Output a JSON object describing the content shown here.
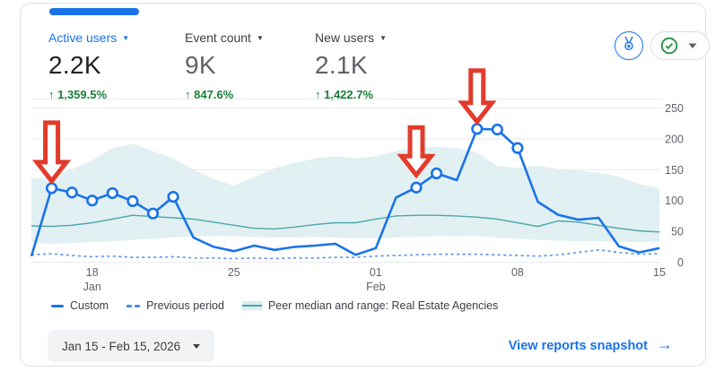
{
  "metrics": [
    {
      "label": "Active users",
      "value": "2.2K",
      "delta": "↑ 1,359.5%",
      "active": true
    },
    {
      "label": "Event count",
      "value": "9K",
      "delta": "↑ 847.6%",
      "active": false
    },
    {
      "label": "New users",
      "value": "2.1K",
      "delta": "↑ 1,422.7%",
      "active": false
    }
  ],
  "chart_data": {
    "type": "line",
    "title": "",
    "xlabel": "",
    "ylabel": "",
    "ylim": [
      0,
      265
    ],
    "grid": true,
    "y_axis_side": "right",
    "y_ticks": [
      0,
      50,
      100,
      150,
      200,
      250
    ],
    "x_axis": [
      {
        "label": "18",
        "month": "Jan",
        "index": 3
      },
      {
        "label": "25",
        "index": 10
      },
      {
        "label": "01",
        "month": "Feb",
        "index": 17
      },
      {
        "label": "08",
        "index": 24
      },
      {
        "label": "15",
        "index": 31
      }
    ],
    "dates": [
      "Jan 15",
      "Jan 16",
      "Jan 17",
      "Jan 18",
      "Jan 19",
      "Jan 20",
      "Jan 21",
      "Jan 22",
      "Jan 23",
      "Jan 24",
      "Jan 25",
      "Jan 26",
      "Jan 27",
      "Jan 28",
      "Jan 29",
      "Jan 30",
      "Jan 31",
      "Feb 1",
      "Feb 2",
      "Feb 3",
      "Feb 4",
      "Feb 5",
      "Feb 6",
      "Feb 7",
      "Feb 8",
      "Feb 9",
      "Feb 10",
      "Feb 11",
      "Feb 12",
      "Feb 13",
      "Feb 14",
      "Feb 15"
    ],
    "series": {
      "custom": {
        "name": "Custom",
        "color": "#1a73e8",
        "style": "solid",
        "values": [
          10,
          120,
          113,
          100,
          112,
          99,
          79,
          106,
          40,
          25,
          18,
          27,
          20,
          25,
          27,
          30,
          12,
          23,
          105,
          121,
          144,
          133,
          216,
          215,
          185,
          98,
          77,
          69,
          72,
          26,
          16,
          23
        ],
        "marker_days": [
          "Jan 16",
          "Jan 17",
          "Jan 18",
          "Jan 19",
          "Jan 20",
          "Jan 21",
          "Jan 22",
          "Feb 3",
          "Feb 4",
          "Feb 6",
          "Feb 7",
          "Feb 8"
        ]
      },
      "previous": {
        "name": "Previous period",
        "color": "#5e97f0",
        "style": "dashed",
        "values": [
          12,
          14,
          11,
          9,
          10,
          8,
          8,
          9,
          7,
          7,
          6,
          7,
          6,
          7,
          7,
          8,
          8,
          10,
          11,
          12,
          13,
          13,
          13,
          12,
          11,
          10,
          12,
          16,
          20,
          16,
          13,
          14
        ]
      },
      "peer_median": {
        "name": "Peer median",
        "color": "#4da5ad",
        "style": "solid",
        "values": [
          59,
          58,
          60,
          64,
          70,
          76,
          74,
          72,
          70,
          65,
          60,
          55,
          54,
          57,
          61,
          64,
          64,
          70,
          75,
          76,
          76,
          75,
          73,
          70,
          64,
          58,
          67,
          65,
          60,
          55,
          51,
          49
        ]
      }
    },
    "peer_range": {
      "name": "Peer range: Real Estate Agencies",
      "fill": "#e1f0f2",
      "upper": [
        135,
        140,
        150,
        165,
        185,
        192,
        180,
        168,
        150,
        135,
        124,
        138,
        152,
        161,
        168,
        172,
        168,
        172,
        180,
        185,
        187,
        185,
        178,
        156,
        153,
        156,
        151,
        149,
        145,
        139,
        127,
        120
      ],
      "lower": [
        32,
        30,
        31,
        33,
        34,
        36,
        38,
        40,
        42,
        42,
        42,
        41,
        40,
        40,
        41,
        40,
        39,
        39,
        40,
        41,
        42,
        42,
        42,
        40,
        38,
        36,
        35,
        34,
        34,
        33,
        33,
        33
      ]
    }
  },
  "annotations": {
    "color": "#e23b2b",
    "arrows": [
      {
        "points_at": "Jan 16",
        "height": 65,
        "gap": 8
      },
      {
        "points_at": "Feb 3",
        "height": 53,
        "gap": 14
      },
      {
        "points_at": "Feb 6",
        "height": 57,
        "gap": 8
      }
    ]
  },
  "legend": {
    "items": [
      {
        "label": "Custom"
      },
      {
        "label": "Previous period"
      },
      {
        "label": "Peer median and range: Real Estate Agencies"
      }
    ]
  },
  "footer": {
    "date_range": "Jan 15 - Feb 15, 2026",
    "link_label": "View reports snapshot",
    "link_arrow": "→"
  },
  "colors": {
    "accent": "#1a73e8",
    "positive": "#188038",
    "axis_text": "#5f6368",
    "grid": "#e8eaed",
    "card_border": "#dfe1e5",
    "annotation_red": "#e23b2b"
  }
}
